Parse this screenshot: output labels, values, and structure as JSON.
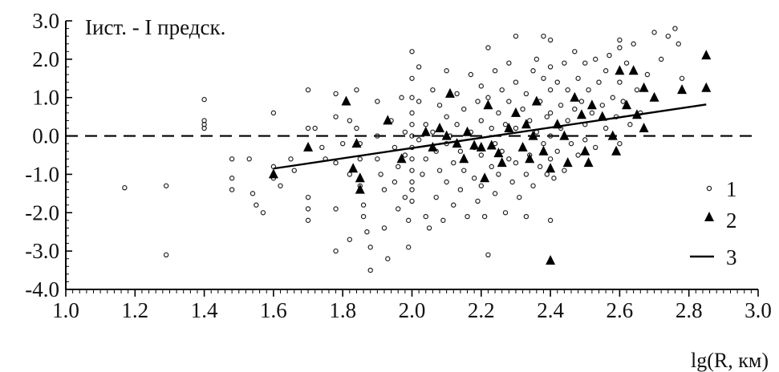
{
  "chart_data": {
    "type": "scatter",
    "title": "Iист. - I предск.",
    "xlabel": "lg(R, км)",
    "ylabel": "",
    "xlim": [
      1.0,
      3.0
    ],
    "ylim": [
      -4.0,
      3.0
    ],
    "x_ticks": [
      "1.0",
      "1.2",
      "1.4",
      "1.6",
      "1.8",
      "2.0",
      "2.2",
      "2.4",
      "2.6",
      "2.8",
      "3.0"
    ],
    "y_ticks": [
      "3.0",
      "2.0",
      "1.0",
      "0.0",
      "-1.0",
      "-2.0",
      "-3.0",
      "-4.0"
    ],
    "x_minor_step": 0.02,
    "y_minor_step": 0.2,
    "zero_line": {
      "y": 0.0,
      "style": "dashed"
    },
    "legend": {
      "position": "bottom-right",
      "entries": [
        "1",
        "2",
        "3"
      ]
    },
    "series": [
      {
        "name": "1",
        "marker": "open-circle",
        "points": [
          [
            1.17,
            -1.35
          ],
          [
            1.29,
            -1.3
          ],
          [
            1.29,
            -3.1
          ],
          [
            1.4,
            0.95
          ],
          [
            1.4,
            0.4
          ],
          [
            1.4,
            0.3
          ],
          [
            1.4,
            0.2
          ],
          [
            1.48,
            -0.6
          ],
          [
            1.48,
            -1.1
          ],
          [
            1.48,
            -1.4
          ],
          [
            1.53,
            -0.6
          ],
          [
            1.54,
            -1.5
          ],
          [
            1.55,
            -1.8
          ],
          [
            1.57,
            -2.0
          ],
          [
            1.6,
            0.6
          ],
          [
            1.6,
            -0.8
          ],
          [
            1.6,
            -1.1
          ],
          [
            1.62,
            -1.3
          ],
          [
            1.65,
            -0.6
          ],
          [
            1.66,
            -0.9
          ],
          [
            1.7,
            1.2
          ],
          [
            1.7,
            0.2
          ],
          [
            1.7,
            -1.6
          ],
          [
            1.7,
            -1.9
          ],
          [
            1.7,
            -2.2
          ],
          [
            1.72,
            0.2
          ],
          [
            1.74,
            -0.3
          ],
          [
            1.75,
            -0.6
          ],
          [
            1.78,
            1.1
          ],
          [
            1.78,
            0.5
          ],
          [
            1.78,
            -0.7
          ],
          [
            1.78,
            -1.9
          ],
          [
            1.78,
            -3.0
          ],
          [
            1.8,
            -0.2
          ],
          [
            1.82,
            0.4
          ],
          [
            1.82,
            -1.0
          ],
          [
            1.82,
            -2.7
          ],
          [
            1.84,
            1.2
          ],
          [
            1.84,
            0.2
          ],
          [
            1.85,
            -0.2
          ],
          [
            1.85,
            -0.6
          ],
          [
            1.85,
            -1.3
          ],
          [
            1.86,
            -1.8
          ],
          [
            1.86,
            -2.1
          ],
          [
            1.87,
            -2.5
          ],
          [
            1.88,
            -2.9
          ],
          [
            1.88,
            -3.5
          ],
          [
            1.9,
            0.9
          ],
          [
            1.9,
            0.0
          ],
          [
            1.9,
            -0.6
          ],
          [
            1.91,
            -1.0
          ],
          [
            1.92,
            -1.4
          ],
          [
            1.92,
            -2.4
          ],
          [
            1.93,
            -3.2
          ],
          [
            1.94,
            0.4
          ],
          [
            1.95,
            -0.3
          ],
          [
            1.95,
            -1.2
          ],
          [
            1.96,
            -0.8
          ],
          [
            1.96,
            -1.9
          ],
          [
            1.97,
            1.0
          ],
          [
            1.98,
            0.1
          ],
          [
            1.98,
            -0.5
          ],
          [
            1.98,
            -1.6
          ],
          [
            1.99,
            -2.2
          ],
          [
            1.99,
            -2.9
          ],
          [
            2.0,
            2.2
          ],
          [
            2.0,
            1.5
          ],
          [
            2.0,
            1.0
          ],
          [
            2.0,
            0.6
          ],
          [
            2.0,
            0.3
          ],
          [
            2.0,
            0.0
          ],
          [
            2.0,
            -0.3
          ],
          [
            2.0,
            -0.6
          ],
          [
            2.0,
            -0.9
          ],
          [
            2.0,
            -1.2
          ],
          [
            2.0,
            -1.4
          ],
          [
            2.0,
            -1.7
          ],
          [
            2.02,
            1.8
          ],
          [
            2.02,
            0.9
          ],
          [
            2.02,
            -0.1
          ],
          [
            2.03,
            -1.0
          ],
          [
            2.04,
            0.3
          ],
          [
            2.04,
            -0.6
          ],
          [
            2.04,
            -2.1
          ],
          [
            2.05,
            -2.4
          ],
          [
            2.06,
            1.2
          ],
          [
            2.06,
            0.1
          ],
          [
            2.07,
            -0.4
          ],
          [
            2.07,
            -1.6
          ],
          [
            2.08,
            0.8
          ],
          [
            2.08,
            -0.9
          ],
          [
            2.09,
            -2.2
          ],
          [
            2.1,
            1.7
          ],
          [
            2.1,
            0.5
          ],
          [
            2.1,
            -0.2
          ],
          [
            2.1,
            -1.2
          ],
          [
            2.11,
            0.0
          ],
          [
            2.12,
            -0.7
          ],
          [
            2.12,
            -1.8
          ],
          [
            2.13,
            1.1
          ],
          [
            2.13,
            0.3
          ],
          [
            2.14,
            -0.4
          ],
          [
            2.14,
            -1.4
          ],
          [
            2.15,
            0.7
          ],
          [
            2.15,
            -0.9
          ],
          [
            2.16,
            -2.1
          ],
          [
            2.17,
            1.6
          ],
          [
            2.17,
            0.1
          ],
          [
            2.18,
            -0.3
          ],
          [
            2.18,
            -1.1
          ],
          [
            2.19,
            0.9
          ],
          [
            2.19,
            -1.7
          ],
          [
            2.2,
            1.3
          ],
          [
            2.2,
            0.4
          ],
          [
            2.2,
            -0.5
          ],
          [
            2.2,
            -1.3
          ],
          [
            2.21,
            -2.1
          ],
          [
            2.22,
            2.3
          ],
          [
            2.22,
            1.0
          ],
          [
            2.22,
            -3.1
          ],
          [
            2.23,
            0.2
          ],
          [
            2.23,
            -0.8
          ],
          [
            2.24,
            1.7
          ],
          [
            2.24,
            -0.2
          ],
          [
            2.24,
            -1.5
          ],
          [
            2.25,
            0.6
          ],
          [
            2.25,
            -1.0
          ],
          [
            2.26,
            1.2
          ],
          [
            2.26,
            -0.4
          ],
          [
            2.27,
            0.3
          ],
          [
            2.27,
            -2.0
          ],
          [
            2.28,
            1.9
          ],
          [
            2.28,
            0.9
          ],
          [
            2.28,
            -0.6
          ],
          [
            2.29,
            -1.2
          ],
          [
            2.3,
            2.6
          ],
          [
            2.3,
            1.4
          ],
          [
            2.3,
            0.2
          ],
          [
            2.3,
            -0.7
          ],
          [
            2.31,
            -1.6
          ],
          [
            2.32,
            0.7
          ],
          [
            2.32,
            -0.3
          ],
          [
            2.33,
            1.1
          ],
          [
            2.33,
            -1.0
          ],
          [
            2.33,
            -2.1
          ],
          [
            2.34,
            0.4
          ],
          [
            2.34,
            -0.5
          ],
          [
            2.35,
            1.7
          ],
          [
            2.35,
            -1.3
          ],
          [
            2.36,
            2.0
          ],
          [
            2.36,
            0.1
          ],
          [
            2.37,
            0.9
          ],
          [
            2.37,
            -0.8
          ],
          [
            2.38,
            2.6
          ],
          [
            2.38,
            1.5
          ],
          [
            2.38,
            -0.2
          ],
          [
            2.39,
            0.5
          ],
          [
            2.39,
            -1.0
          ],
          [
            2.4,
            2.5
          ],
          [
            2.4,
            1.8
          ],
          [
            2.4,
            1.2
          ],
          [
            2.4,
            0.6
          ],
          [
            2.4,
            0.0
          ],
          [
            2.4,
            -0.6
          ],
          [
            2.4,
            -2.2
          ],
          [
            2.41,
            -1.1
          ],
          [
            2.42,
            1.4
          ],
          [
            2.42,
            -0.4
          ],
          [
            2.43,
            0.8
          ],
          [
            2.43,
            0.2
          ],
          [
            2.44,
            1.9
          ],
          [
            2.44,
            -0.9
          ],
          [
            2.45,
            1.2
          ],
          [
            2.45,
            0.4
          ],
          [
            2.46,
            -0.2
          ],
          [
            2.47,
            2.2
          ],
          [
            2.47,
            0.7
          ],
          [
            2.48,
            1.5
          ],
          [
            2.48,
            -0.5
          ],
          [
            2.49,
            0.9
          ],
          [
            2.5,
            1.9
          ],
          [
            2.5,
            0.3
          ],
          [
            2.5,
            -0.1
          ],
          [
            2.51,
            1.2
          ],
          [
            2.52,
            0.6
          ],
          [
            2.53,
            2.0
          ],
          [
            2.53,
            -0.3
          ],
          [
            2.54,
            1.4
          ],
          [
            2.55,
            0.8
          ],
          [
            2.56,
            1.7
          ],
          [
            2.56,
            0.2
          ],
          [
            2.57,
            2.1
          ],
          [
            2.58,
            1.0
          ],
          [
            2.58,
            0.0
          ],
          [
            2.59,
            0.5
          ],
          [
            2.6,
            2.5
          ],
          [
            2.6,
            2.3
          ],
          [
            2.6,
            1.4
          ],
          [
            2.6,
            -0.2
          ],
          [
            2.61,
            0.9
          ],
          [
            2.62,
            1.9
          ],
          [
            2.63,
            0.3
          ],
          [
            2.64,
            2.4
          ],
          [
            2.65,
            1.2
          ],
          [
            2.66,
            0.6
          ],
          [
            2.68,
            1.6
          ],
          [
            2.7,
            2.7
          ],
          [
            2.7,
            1.0
          ],
          [
            2.72,
            2.0
          ],
          [
            2.74,
            2.6
          ],
          [
            2.76,
            2.8
          ],
          [
            2.77,
            2.4
          ],
          [
            2.78,
            1.5
          ]
        ]
      },
      {
        "name": "2",
        "marker": "filled-triangle",
        "points": [
          [
            1.6,
            -1.0
          ],
          [
            1.7,
            -0.3
          ],
          [
            1.81,
            0.9
          ],
          [
            1.83,
            -0.85
          ],
          [
            1.84,
            -0.2
          ],
          [
            1.85,
            -1.1
          ],
          [
            1.85,
            -1.4
          ],
          [
            1.93,
            0.4
          ],
          [
            1.97,
            -0.6
          ],
          [
            2.04,
            0.1
          ],
          [
            2.06,
            -0.3
          ],
          [
            2.08,
            0.2
          ],
          [
            2.1,
            0.0
          ],
          [
            2.11,
            1.1
          ],
          [
            2.13,
            -0.2
          ],
          [
            2.15,
            -0.6
          ],
          [
            2.16,
            0.1
          ],
          [
            2.18,
            -0.25
          ],
          [
            2.2,
            -0.3
          ],
          [
            2.21,
            -1.1
          ],
          [
            2.22,
            0.8
          ],
          [
            2.23,
            -0.25
          ],
          [
            2.25,
            -0.45
          ],
          [
            2.26,
            -0.7
          ],
          [
            2.28,
            0.2
          ],
          [
            2.3,
            0.6
          ],
          [
            2.32,
            -0.3
          ],
          [
            2.33,
            0.3
          ],
          [
            2.34,
            -0.6
          ],
          [
            2.35,
            0.0
          ],
          [
            2.36,
            0.9
          ],
          [
            2.38,
            -0.4
          ],
          [
            2.4,
            -0.85
          ],
          [
            2.4,
            -3.25
          ],
          [
            2.42,
            0.3
          ],
          [
            2.44,
            0.0
          ],
          [
            2.45,
            -0.7
          ],
          [
            2.47,
            1.0
          ],
          [
            2.49,
            0.55
          ],
          [
            2.5,
            -0.4
          ],
          [
            2.51,
            -0.7
          ],
          [
            2.52,
            0.8
          ],
          [
            2.55,
            0.5
          ],
          [
            2.58,
            0.0
          ],
          [
            2.59,
            -0.4
          ],
          [
            2.6,
            1.7
          ],
          [
            2.62,
            0.8
          ],
          [
            2.64,
            1.7
          ],
          [
            2.65,
            0.55
          ],
          [
            2.67,
            0.2
          ],
          [
            2.67,
            1.25
          ],
          [
            2.7,
            1.0
          ],
          [
            2.78,
            1.2
          ],
          [
            2.85,
            2.1
          ],
          [
            2.85,
            1.25
          ]
        ]
      },
      {
        "name": "3",
        "marker": "line",
        "points": [
          [
            1.6,
            -0.85
          ],
          [
            2.85,
            0.82
          ]
        ]
      }
    ]
  }
}
